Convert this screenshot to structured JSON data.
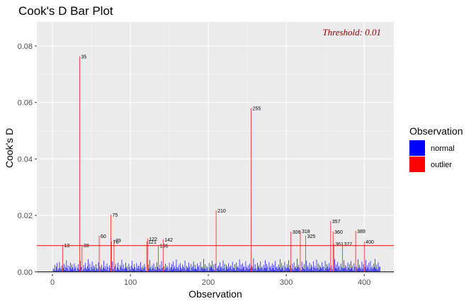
{
  "chart_data": {
    "type": "bar",
    "title": "Cook's D Bar Plot",
    "xlabel": "Observation",
    "ylabel": "Cook's D",
    "xlim": [
      -20,
      438
    ],
    "ylim": [
      -0.0008,
      0.0885
    ],
    "x_ticks": [
      0,
      100,
      200,
      300,
      400
    ],
    "x_tick_labels": [
      "0",
      "100",
      "200",
      "300",
      "400"
    ],
    "y_ticks": [
      0.0,
      0.02,
      0.04,
      0.06,
      0.08
    ],
    "y_tick_labels": [
      "0.00",
      "0.02",
      "0.04",
      "0.06",
      "0.08"
    ],
    "grid": true,
    "threshold": {
      "value": 0.0093,
      "label": "Threshold: 0.01",
      "color": "#FF0000"
    },
    "legend": {
      "title": "Observation",
      "position": "right",
      "items": [
        {
          "label": "normal",
          "color": "#0000FF"
        },
        {
          "label": "outlier",
          "color": "#FF0000"
        }
      ]
    },
    "outliers": [
      {
        "obs": 13,
        "value": 0.0095,
        "label": "13"
      },
      {
        "obs": 35,
        "value": 0.0763,
        "label": "35"
      },
      {
        "obs": 38,
        "value": 0.0095,
        "label": "38"
      },
      {
        "obs": 60,
        "value": 0.0128,
        "label": "60"
      },
      {
        "obs": 75,
        "value": 0.0203,
        "label": "75"
      },
      {
        "obs": 76,
        "value": 0.0108,
        "label": "76"
      },
      {
        "obs": 79,
        "value": 0.0113,
        "label": "79"
      },
      {
        "obs": 121,
        "value": 0.0108,
        "label": "121"
      },
      {
        "obs": 122,
        "value": 0.0118,
        "label": "122"
      },
      {
        "obs": 136,
        "value": 0.0093,
        "label": "136"
      },
      {
        "obs": 142,
        "value": 0.0115,
        "label": "142"
      },
      {
        "obs": 210,
        "value": 0.0218,
        "label": "210"
      },
      {
        "obs": 255,
        "value": 0.058,
        "label": "255"
      },
      {
        "obs": 306,
        "value": 0.0143,
        "label": "306"
      },
      {
        "obs": 318,
        "value": 0.0145,
        "label": "318"
      },
      {
        "obs": 325,
        "value": 0.0128,
        "label": "325"
      },
      {
        "obs": 357,
        "value": 0.018,
        "label": "357"
      },
      {
        "obs": 360,
        "value": 0.0143,
        "label": "360"
      },
      {
        "obs": 361,
        "value": 0.01,
        "label": "361"
      },
      {
        "obs": 372,
        "value": 0.01,
        "label": "372"
      },
      {
        "obs": 389,
        "value": 0.0145,
        "label": "389"
      },
      {
        "obs": 400,
        "value": 0.0108,
        "label": "400"
      }
    ],
    "normal_values": [
      0.0012,
      0.0008,
      0.0025,
      0.0004,
      0.0018,
      0.0031,
      0.0006,
      0.0011,
      0.0035,
      0.0015,
      0.0009,
      0.0022,
      0.0014,
      0.0028,
      0.0007,
      0.0017,
      0.0041,
      0.0012,
      0.0023,
      0.0005,
      0.0019,
      0.0033,
      0.001,
      0.0026,
      0.0016,
      0.0008,
      0.003,
      0.0013,
      0.0021,
      0.0004,
      0.0014,
      0.0027,
      0.0009,
      0.0038,
      0.0017,
      0.0006,
      0.0024,
      0.0011,
      0.0032,
      0.0015,
      0.0008,
      0.002,
      0.0045,
      0.0012,
      0.0029,
      0.0007,
      0.0018,
      0.0036,
      0.001,
      0.0022,
      0.0016,
      0.0005,
      0.0027,
      0.0013,
      0.0009,
      0.0034,
      0.0019,
      0.0011,
      0.0025,
      0.0006,
      0.0015,
      0.004,
      0.0012,
      0.0021,
      0.0008,
      0.003,
      0.0017,
      0.0004,
      0.0023,
      0.0014,
      0.0037,
      0.001,
      0.0019,
      0.0028,
      0.0007,
      0.0016,
      0.0032,
      0.0012,
      0.0006,
      0.0024,
      0.0018,
      0.0043,
      0.0011,
      0.0026,
      0.0009,
      0.0015,
      0.0033,
      0.0013,
      0.002,
      0.0005,
      0.0029,
      0.0017,
      0.0008,
      0.0022,
      0.0039,
      0.0014,
      0.001,
      0.0027,
      0.0016,
      0.0006,
      0.0031,
      0.0012,
      0.0019,
      0.0024,
      0.0009,
      0.0035,
      0.0015,
      0.0007,
      0.0021,
      0.0013,
      0.0028,
      0.0018,
      0.0004,
      0.0026,
      0.0011,
      0.0042,
      0.0016,
      0.0008,
      0.0023,
      0.0014,
      0.003,
      0.001,
      0.0019,
      0.0006,
      0.0034,
      0.0017,
      0.0012,
      0.0025,
      0.0009,
      0.0038,
      0.0015,
      0.002,
      0.0007,
      0.0029,
      0.0013,
      0.0022,
      0.0016,
      0.0005,
      0.0032,
      0.0011,
      0.0018,
      0.0027,
      0.0008,
      0.0036,
      0.0014,
      0.0021,
      0.001,
      0.0044,
      0.0017,
      0.0012,
      0.0024,
      0.0006,
      0.0031,
      0.0015,
      0.0009,
      0.0026,
      0.0019,
      0.0013,
      0.004,
      0.0007,
      0.0022,
      0.0016,
      0.0011,
      0.0033,
      0.0018,
      0.0005,
      0.0028,
      0.0014,
      0.002,
      0.0037,
      0.001,
      0.0025,
      0.0012,
      0.0008,
      0.003,
      0.0017,
      0.0023,
      0.0006,
      0.0035,
      0.0015,
      0.0019,
      0.0011,
      0.0046,
      0.0013,
      0.0027,
      0.0009,
      0.0021,
      0.0016,
      0.0004,
      0.0032,
      0.0014,
      0.0024,
      0.0018,
      0.0039,
      0.001,
      0.0026,
      0.0007,
      0.0029,
      0.0012,
      0.0017,
      0.0022,
      0.0008,
      0.0034,
      0.0015,
      0.002,
      0.0011,
      0.0041,
      0.0013,
      0.0028,
      0.0006,
      0.0025,
      0.0018,
      0.001,
      0.0031,
      0.0014,
      0.0019,
      0.0023,
      0.0009,
      0.0036,
      0.0016,
      0.0012,
      0.0027,
      0.0005,
      0.0033,
      0.0017,
      0.0021,
      0.0013,
      0.0044,
      0.0011,
      0.0026,
      0.0008,
      0.003,
      0.0015,
      0.002,
      0.0007,
      0.0038,
      0.0018,
      0.0012,
      0.0024,
      0.0009,
      0.0029,
      0.0014,
      0.0022,
      0.0016,
      0.0048,
      0.001,
      0.0027,
      0.0013,
      0.0006,
      0.0032,
      0.0017,
      0.0023,
      0.0011,
      0.0037,
      0.0015,
      0.0019,
      0.0008,
      0.0025,
      0.0014,
      0.0042,
      0.0012,
      0.0028,
      0.0018,
      0.0005,
      0.0034,
      0.0016,
      0.0021,
      0.001,
      0.003,
      0.0013,
      0.0024,
      0.0007,
      0.0039,
      0.0015,
      0.0019,
      0.0011,
      0.0026,
      0.0017,
      0.0045,
      0.0009,
      0.0031,
      0.0014,
      0.0022,
      0.0006,
      0.0035,
      0.0018,
      0.0012,
      0.0027,
      0.0016,
      0.0041,
      0.001,
      0.0023,
      0.0013,
      0.0029,
      0.0008,
      0.0033,
      0.0015,
      0.002,
      0.0011,
      0.0047,
      0.0017,
      0.0025,
      0.0014,
      0.0007,
      0.0036,
      0.0019,
      0.0012,
      0.0028,
      0.0009,
      0.004,
      0.0016,
      0.0022,
      0.001,
      0.0032,
      0.0013,
      0.0026,
      0.0018,
      0.0005,
      0.0037,
      0.0015,
      0.0021,
      0.0011,
      0.0043,
      0.0014,
      0.003,
      0.0008,
      0.0024,
      0.0017,
      0.0012,
      0.0034,
      0.0016,
      0.002,
      0.0006,
      0.0039,
      0.0013,
      0.0027,
      0.0019,
      0.001,
      0.0031,
      0.0015,
      0.0023,
      0.0009,
      0.0045,
      0.0014,
      0.0026,
      0.0011,
      0.0035,
      0.0017,
      0.0021,
      0.0007,
      0.0029,
      0.0016,
      0.0012,
      0.0041,
      0.0013,
      0.0024,
      0.0018,
      0.0008,
      0.0033,
      0.0015,
      0.0028,
      0.001,
      0.0038,
      0.0014,
      0.0022,
      0.0006,
      0.003,
      0.0017,
      0.0019,
      0.0011,
      0.0044,
      0.0013,
      0.0025,
      0.0016,
      0.0009,
      0.0036,
      0.0012,
      0.0027,
      0.0018,
      0.0042,
      0.001,
      0.0023,
      0.0015,
      0.0032,
      0.0008,
      0.0039,
      0.0014,
      0.0021,
      0.0011,
      0.0029,
      0.0017,
      0.0046,
      0.0013,
      0.0026,
      0.0009,
      0.0034,
      0.0016,
      0.002,
      0.0007,
      0.0037,
      0.0012,
      0.0024,
      0.0015,
      0.004,
      0.001,
      0.0028,
      0.0014,
      0.0022,
      0.0018,
      0.0011,
      0.003
    ]
  }
}
